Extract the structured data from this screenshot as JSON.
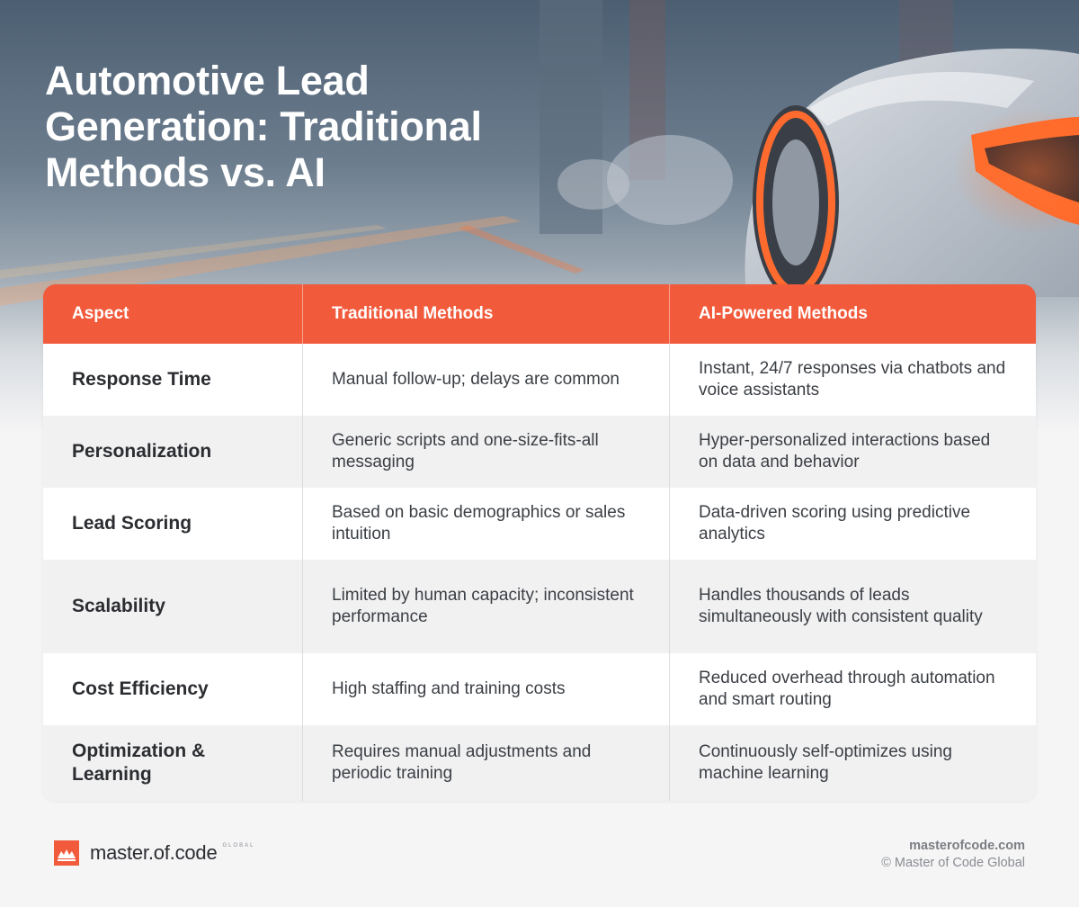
{
  "title": "Automotive Lead\nGeneration: Traditional\nMethods vs. AI",
  "colors": {
    "accent": "#f15a3b",
    "row_alt": "#f1f1f2",
    "text": "#2b2d31"
  },
  "table": {
    "headers": [
      "Aspect",
      "Traditional Methods",
      "AI-Powered Methods"
    ],
    "rows": [
      {
        "aspect": "Response Time",
        "traditional": "Manual follow-up; delays are common",
        "ai": "Instant, 24/7 responses via chatbots and voice assistants"
      },
      {
        "aspect": "Personalization",
        "traditional": "Generic scripts and one-size-fits-all messaging",
        "ai": "Hyper-personalized interactions based on data and behavior"
      },
      {
        "aspect": "Lead Scoring",
        "traditional": "Based on basic demographics or sales intuition",
        "ai": "Data-driven scoring using predictive analytics"
      },
      {
        "aspect": "Scalability",
        "traditional": "Limited by human capacity; inconsistent performance",
        "ai": "Handles thousands of leads simultaneously with consistent quality"
      },
      {
        "aspect": "Cost Efficiency",
        "traditional": "High staffing and training costs",
        "ai": "Reduced overhead through automation and smart routing"
      },
      {
        "aspect": "Optimization & Learning",
        "traditional": "Requires manual adjustments and periodic training",
        "ai": "Continuously self-optimizes using machine learning"
      }
    ]
  },
  "footer": {
    "logo_text": "master.of.code",
    "logo_sub": "GLOBAL",
    "logo_icon": "master-of-code-logo-icon",
    "site": "masterofcode.com",
    "copyright": "© Master of Code Global"
  }
}
